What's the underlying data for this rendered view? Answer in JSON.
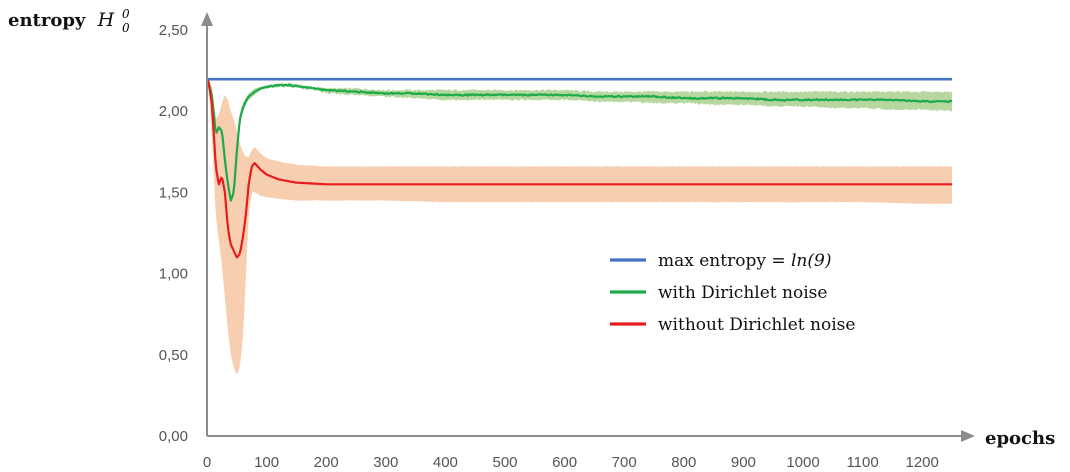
{
  "chart_data": {
    "type": "line",
    "title": "",
    "ylabel": "entropy",
    "ylabel_math": "H",
    "ylabel_math_sup": "0",
    "ylabel_math_sub": "0",
    "xlabel": "epochs",
    "xlim": [
      0,
      1250
    ],
    "ylim": [
      0,
      2.5
    ],
    "x_ticks": [
      0,
      100,
      200,
      300,
      400,
      500,
      600,
      700,
      800,
      900,
      1000,
      1100,
      1200
    ],
    "x_tick_labels": [
      "0",
      "100",
      "200",
      "300",
      "400",
      "500",
      "600",
      "700",
      "800",
      "900",
      "1000",
      "1100",
      "1200"
    ],
    "y_ticks": [
      0,
      0.5,
      1.0,
      1.5,
      2.0,
      2.5
    ],
    "y_tick_labels": [
      "0,00",
      "0,50",
      "1,00",
      "1,50",
      "2,00",
      "2,50"
    ],
    "grid": false,
    "legend_position": "center-right",
    "series": [
      {
        "name": "max entropy = ln(9)",
        "legend_prefix": "max entropy = ",
        "legend_math": "ln(9)",
        "color": "#4472C4",
        "x": [
          0,
          1250
        ],
        "y": [
          2.197,
          2.197
        ]
      },
      {
        "name": "with Dirichlet noise",
        "color": "#1DAA4B",
        "band_color": "#A9D18E",
        "x": [
          2,
          8,
          15,
          20,
          25,
          30,
          35,
          40,
          45,
          50,
          55,
          60,
          65,
          70,
          80,
          90,
          100,
          120,
          140,
          160,
          180,
          200,
          250,
          300,
          350,
          400,
          450,
          500,
          550,
          600,
          650,
          700,
          750,
          800,
          850,
          900,
          950,
          1000,
          1050,
          1100,
          1150,
          1200,
          1250
        ],
        "y": [
          2.19,
          2.1,
          1.86,
          1.9,
          1.88,
          1.7,
          1.55,
          1.45,
          1.5,
          1.75,
          1.95,
          2.02,
          2.06,
          2.09,
          2.12,
          2.14,
          2.15,
          2.16,
          2.16,
          2.15,
          2.14,
          2.13,
          2.12,
          2.11,
          2.11,
          2.1,
          2.1,
          2.1,
          2.1,
          2.1,
          2.09,
          2.09,
          2.09,
          2.08,
          2.08,
          2.08,
          2.07,
          2.07,
          2.07,
          2.07,
          2.07,
          2.06,
          2.06
        ],
        "y_lower": [
          2.19,
          2.08,
          1.82,
          1.86,
          1.84,
          1.66,
          1.5,
          1.42,
          1.46,
          1.72,
          1.92,
          1.99,
          2.04,
          2.07,
          2.1,
          2.13,
          2.14,
          2.15,
          2.15,
          2.14,
          2.13,
          2.11,
          2.1,
          2.09,
          2.08,
          2.07,
          2.07,
          2.07,
          2.07,
          2.07,
          2.06,
          2.06,
          2.05,
          2.05,
          2.04,
          2.04,
          2.03,
          2.03,
          2.02,
          2.02,
          2.01,
          2.01,
          2.0
        ],
        "y_upper": [
          2.19,
          2.12,
          1.9,
          1.94,
          1.92,
          1.74,
          1.6,
          1.49,
          1.55,
          1.79,
          1.98,
          2.05,
          2.08,
          2.11,
          2.14,
          2.15,
          2.16,
          2.17,
          2.17,
          2.16,
          2.15,
          2.14,
          2.14,
          2.13,
          2.13,
          2.13,
          2.13,
          2.13,
          2.13,
          2.13,
          2.12,
          2.12,
          2.12,
          2.12,
          2.12,
          2.12,
          2.12,
          2.12,
          2.12,
          2.12,
          2.12,
          2.12,
          2.12
        ]
      },
      {
        "name": "without Dirichlet noise",
        "color": "#E81C1C",
        "band_color": "#F8CBAD",
        "x": [
          2,
          8,
          15,
          20,
          25,
          30,
          35,
          40,
          45,
          50,
          55,
          60,
          65,
          70,
          75,
          80,
          90,
          100,
          120,
          150,
          200,
          300,
          400,
          500,
          600,
          700,
          800,
          900,
          1000,
          1100,
          1200,
          1250
        ],
        "y": [
          2.19,
          2.05,
          1.65,
          1.55,
          1.6,
          1.5,
          1.28,
          1.18,
          1.14,
          1.1,
          1.12,
          1.22,
          1.35,
          1.55,
          1.66,
          1.68,
          1.64,
          1.61,
          1.58,
          1.56,
          1.55,
          1.55,
          1.55,
          1.55,
          1.55,
          1.55,
          1.55,
          1.55,
          1.55,
          1.55,
          1.55,
          1.55
        ],
        "y_lower": [
          2.19,
          1.85,
          1.35,
          1.2,
          1.05,
          0.85,
          0.65,
          0.5,
          0.42,
          0.38,
          0.42,
          0.6,
          0.95,
          1.35,
          1.5,
          1.5,
          1.48,
          1.47,
          1.46,
          1.45,
          1.45,
          1.45,
          1.44,
          1.44,
          1.44,
          1.44,
          1.44,
          1.44,
          1.44,
          1.44,
          1.43,
          1.43
        ],
        "y_upper": [
          2.19,
          2.15,
          1.95,
          1.98,
          2.05,
          2.1,
          2.07,
          2.0,
          1.95,
          1.88,
          1.8,
          1.75,
          1.72,
          1.72,
          1.76,
          1.78,
          1.74,
          1.71,
          1.69,
          1.67,
          1.66,
          1.66,
          1.66,
          1.66,
          1.66,
          1.66,
          1.66,
          1.66,
          1.66,
          1.66,
          1.66,
          1.66
        ]
      }
    ]
  }
}
